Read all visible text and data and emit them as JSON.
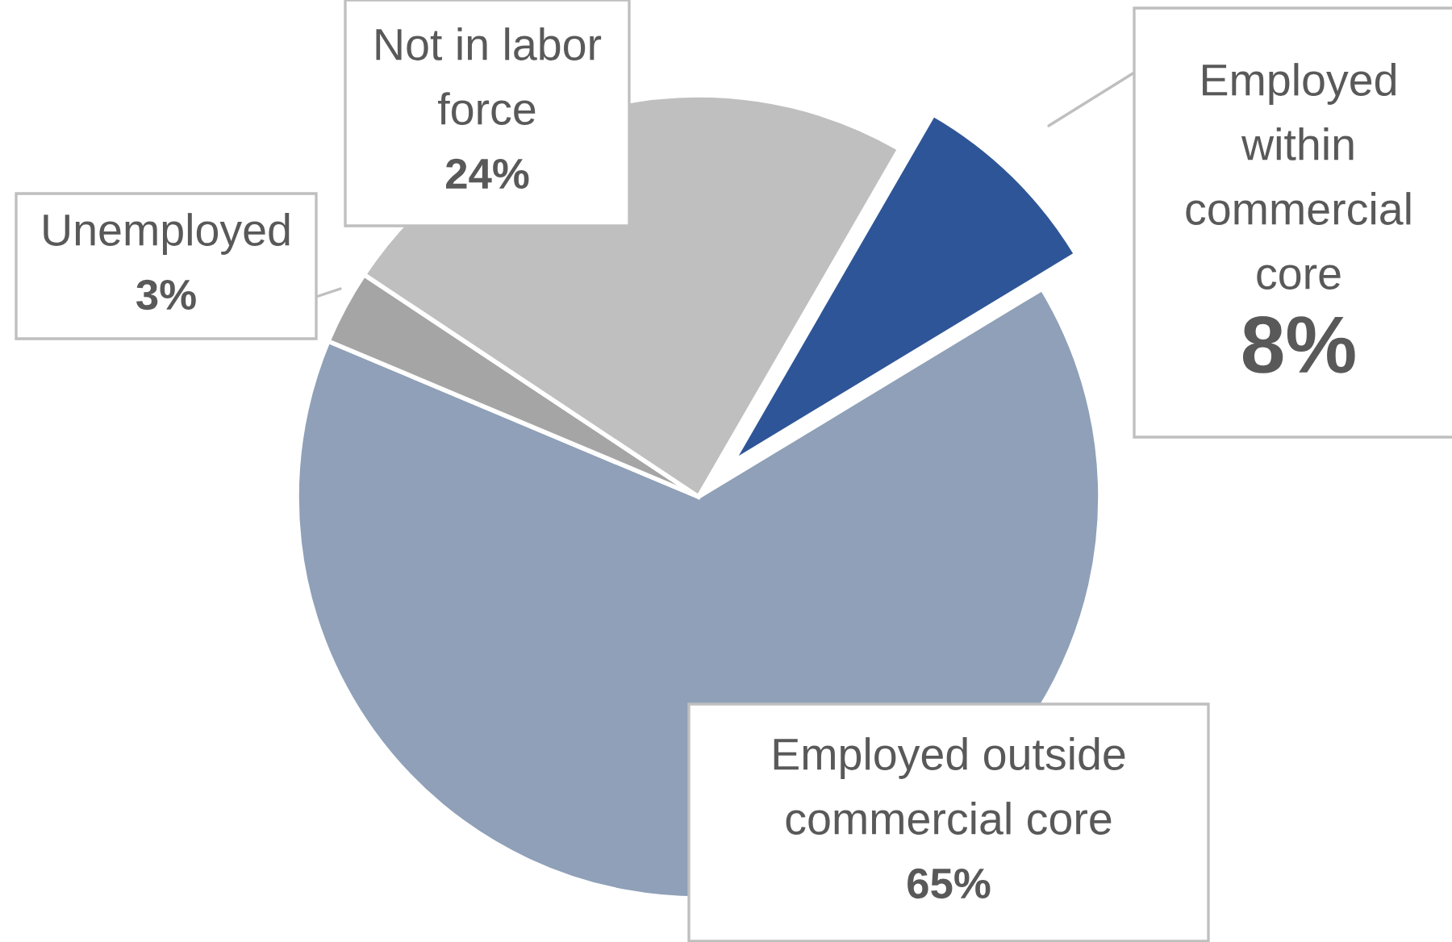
{
  "chart_data": {
    "type": "pie",
    "categories": [
      "Employed\nwithin\ncommercial\ncore",
      "Employed outside\ncommercial core",
      "Unemployed",
      "Not in labor\nforce"
    ],
    "values": [
      8,
      65,
      3,
      24
    ],
    "value_labels": [
      "8%",
      "65%",
      "3%",
      "24%"
    ],
    "colors": [
      "#2e5597",
      "#8fa0b8",
      "#a5a5a5",
      "#bfbfbf"
    ],
    "legend": false
  }
}
